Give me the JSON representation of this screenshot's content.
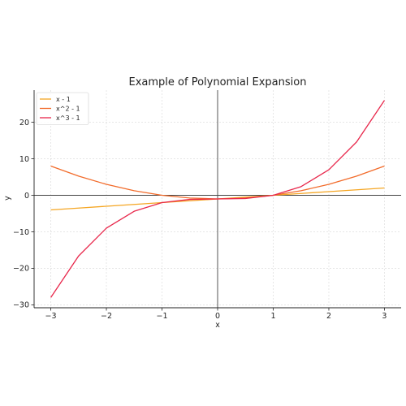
{
  "chart_data": {
    "type": "line",
    "title": "Example of Polynomial Expansion",
    "xlabel": "x",
    "ylabel": "y",
    "xlim": [
      -3.3,
      3.3
    ],
    "ylim": [
      -30.8,
      28.8
    ],
    "xticks": [
      -3,
      -2,
      -1,
      0,
      1,
      2,
      3
    ],
    "yticks": [
      -30,
      -20,
      -10,
      0,
      10,
      20
    ],
    "grid": true,
    "legend_position": "top-left",
    "zero_lines": true,
    "series": [
      {
        "name": "x - 1",
        "color": "#f5a623",
        "x": [
          -3,
          -2.5,
          -2,
          -1.5,
          -1,
          -0.5,
          0,
          0.5,
          1,
          1.5,
          2,
          2.5,
          3
        ],
        "y": [
          -4,
          -3.5,
          -3,
          -2.5,
          -2,
          -1.5,
          -1,
          -0.5,
          0,
          0.5,
          1,
          1.5,
          2
        ]
      },
      {
        "name": "x^2 - 1",
        "color": "#f26b2a",
        "x": [
          -3,
          -2.5,
          -2,
          -1.5,
          -1,
          -0.5,
          0,
          0.5,
          1,
          1.5,
          2,
          2.5,
          3
        ],
        "y": [
          8,
          5.25,
          3,
          1.25,
          0,
          -0.75,
          -1,
          -0.75,
          0,
          1.25,
          3,
          5.25,
          8
        ]
      },
      {
        "name": "x^3 - 1",
        "color": "#e8274b",
        "x": [
          -3,
          -2.5,
          -2,
          -1.5,
          -1,
          -0.5,
          0,
          0.5,
          1,
          1.5,
          2,
          2.5,
          3
        ],
        "y": [
          -28,
          -16.625,
          -9,
          -4.375,
          -2,
          -1.125,
          -1,
          -0.875,
          0,
          2.375,
          7,
          14.625,
          26
        ]
      }
    ]
  }
}
